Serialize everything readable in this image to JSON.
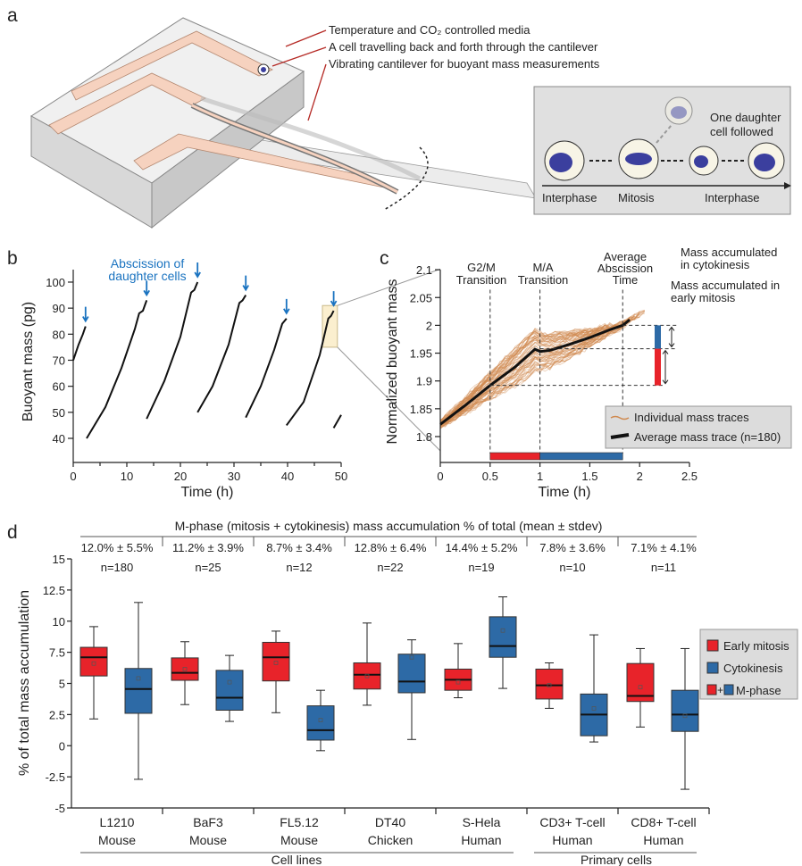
{
  "panels": {
    "a": "a",
    "b": "b",
    "c": "c",
    "d": "d"
  },
  "panel_a": {
    "callouts": [
      "Temperature and CO₂ controlled media",
      "A cell travelling back and forth through the cantilever",
      "Vibrating cantilever for buoyant mass measurements"
    ],
    "inset": {
      "followed": [
        "One daughter",
        "cell followed"
      ],
      "stages": [
        "Interphase",
        "Mitosis",
        "Interphase"
      ]
    },
    "colors": {
      "channel": "#f6d2bf",
      "chip": "#e4e4e4",
      "nucleus": "#3b3f9e",
      "arrow": "#b52a25",
      "inset_bg": "#e0e0e0"
    }
  },
  "chart_data": [
    {
      "id": "b",
      "type": "line",
      "xlabel": "Time (h)",
      "ylabel": "Buoyant mass (pg)",
      "xlim": [
        0,
        50
      ],
      "ylim": [
        35,
        105
      ],
      "xticks": [
        0,
        10,
        20,
        30,
        40,
        50
      ],
      "yticks": [
        40,
        50,
        60,
        70,
        80,
        90,
        100
      ],
      "annotation": [
        "Abscission of",
        "daughter cells"
      ],
      "annotation_color": "#1a73c0",
      "segments": [
        [
          [
            0,
            70
          ],
          [
            1,
            76
          ],
          [
            1.8,
            80
          ],
          [
            2.3,
            83
          ]
        ],
        [
          [
            2.5,
            40
          ],
          [
            6,
            52
          ],
          [
            9,
            67
          ],
          [
            11.5,
            82
          ],
          [
            12.3,
            88
          ],
          [
            13,
            89
          ],
          [
            13.7,
            93
          ]
        ],
        [
          [
            13.7,
            47.5
          ],
          [
            17,
            62
          ],
          [
            20,
            79
          ],
          [
            22,
            96
          ],
          [
            22.6,
            97
          ],
          [
            23.2,
            100
          ]
        ],
        [
          [
            23.2,
            50
          ],
          [
            26,
            60
          ],
          [
            29,
            76
          ],
          [
            31,
            92
          ],
          [
            31.6,
            93
          ],
          [
            32.2,
            95
          ]
        ],
        [
          [
            32.2,
            48
          ],
          [
            35,
            60
          ],
          [
            37.5,
            74
          ],
          [
            39,
            84
          ],
          [
            39.4,
            85
          ],
          [
            39.8,
            86
          ]
        ],
        [
          [
            39.8,
            45
          ],
          [
            43,
            54
          ],
          [
            46,
            72
          ],
          [
            47.6,
            86
          ],
          [
            48.1,
            87
          ],
          [
            48.6,
            89
          ]
        ],
        [
          [
            48.6,
            44
          ],
          [
            50,
            49
          ]
        ]
      ],
      "abscission_times": [
        2.3,
        13.7,
        23.2,
        32.2,
        39.8,
        48.6
      ],
      "highlight_color": "#fbefcf"
    },
    {
      "id": "c",
      "type": "line",
      "xlabel": "Time (h)",
      "ylabel": "Normalized buoyant mass",
      "xlim": [
        0,
        2.5
      ],
      "ylim": [
        1.76,
        2.1
      ],
      "xticks": [
        0,
        0.5,
        1,
        1.5,
        2,
        2.5
      ],
      "yticks": [
        1.8,
        1.85,
        1.9,
        1.95,
        2,
        2.05,
        2.1
      ],
      "vlines": [
        {
          "x": 0.5,
          "label": [
            "G2/M",
            "Transition"
          ]
        },
        {
          "x": 1,
          "label": [
            "M/A",
            "Transition"
          ]
        },
        {
          "x": 1.83,
          "label": [
            "Average",
            "Abscission",
            "Time"
          ]
        }
      ],
      "hlines": [
        1.892,
        1.958,
        2.0
      ],
      "bracket_labels": {
        "cytokinesis": [
          "Mass accumulated",
          "in cytokinesis"
        ],
        "early_mitosis": [
          "Mass accumulated in",
          "early mitosis"
        ]
      },
      "average": [
        [
          0,
          1.822
        ],
        [
          0.25,
          1.856
        ],
        [
          0.5,
          1.892
        ],
        [
          0.75,
          1.925
        ],
        [
          0.95,
          1.957
        ],
        [
          1.0,
          1.953
        ],
        [
          1.1,
          1.955
        ],
        [
          1.3,
          1.966
        ],
        [
          1.5,
          1.978
        ],
        [
          1.7,
          1.992
        ],
        [
          1.83,
          2.0
        ],
        [
          1.9,
          2.01
        ]
      ],
      "series": [
        {
          "name": "Individual mass traces",
          "color": "#d08a50"
        },
        {
          "name": "Average mass trace (n=180)",
          "color": "#111111"
        }
      ],
      "legend": "bottom-right",
      "phase_bar": [
        {
          "from": 0.5,
          "to": 1,
          "color": "#e8232a"
        },
        {
          "from": 1,
          "to": 1.83,
          "color": "#2d6aa6"
        }
      ]
    },
    {
      "id": "d",
      "type": "box",
      "title": "M-phase (mitosis + cytokinesis) mass accumulation % of total (mean ± stdev)",
      "ylabel": "% of total mass accumulation",
      "ylim": [
        -5,
        15
      ],
      "yticks": [
        15,
        12.5,
        10,
        7.5,
        5,
        2.5,
        0,
        -2.5,
        -5
      ],
      "groups": [
        {
          "name": [
            "L1210",
            "Mouse"
          ],
          "mphase": "12.0% ± 5.5%",
          "n": "n=180",
          "early": {
            "min": 2.15,
            "q1": 5.6,
            "median": 7.1,
            "q3": 7.9,
            "max": 9.56,
            "mean": 6.6
          },
          "cyto": {
            "min": -2.7,
            "q1": 2.6,
            "median": 4.55,
            "q3": 6.2,
            "max": 11.5,
            "mean": 5.4
          }
        },
        {
          "name": [
            "BaF3",
            "Mouse"
          ],
          "mphase": "11.2% ± 3.9%",
          "n": "n=25",
          "early": {
            "min": 3.3,
            "q1": 5.25,
            "median": 5.85,
            "q3": 7.05,
            "max": 8.35,
            "mean": 6.15
          },
          "cyto": {
            "min": 1.95,
            "q1": 2.85,
            "median": 3.85,
            "q3": 6.05,
            "max": 7.25,
            "mean": 5.1
          }
        },
        {
          "name": [
            "FL5.12",
            "Mouse"
          ],
          "mphase": "8.7% ± 3.4%",
          "n": "n=12",
          "early": {
            "min": 2.65,
            "q1": 5.2,
            "median": 7.1,
            "q3": 8.3,
            "max": 9.2,
            "mean": 6.65
          },
          "cyto": {
            "min": -0.4,
            "q1": 0.45,
            "median": 1.25,
            "q3": 3.2,
            "max": 4.45,
            "mean": 2.05
          }
        },
        {
          "name": [
            "DT40",
            "Chicken"
          ],
          "mphase": "12.8% ± 6.4%",
          "n": "n=22",
          "early": {
            "min": 3.25,
            "q1": 4.55,
            "median": 5.7,
            "q3": 6.65,
            "max": 9.85,
            "mean": 5.6
          },
          "cyto": {
            "min": 0.5,
            "q1": 4.25,
            "median": 5.15,
            "q3": 7.35,
            "max": 8.5,
            "mean": 7.1
          }
        },
        {
          "name": [
            "S-Hela",
            "Human"
          ],
          "mphase": "14.4% ± 5.2%",
          "n": "n=19",
          "early": {
            "min": 3.85,
            "q1": 4.45,
            "median": 5.3,
            "q3": 6.15,
            "max": 8.2,
            "mean": 5.1
          },
          "cyto": {
            "min": 4.6,
            "q1": 7.1,
            "median": 8.0,
            "q3": 10.35,
            "max": 11.95,
            "mean": 9.25
          }
        },
        {
          "name": [
            "CD3+ T-cell",
            "Human"
          ],
          "mphase": "7.8% ± 3.6%",
          "n": "n=10",
          "early": {
            "min": 3.0,
            "q1": 3.75,
            "median": 4.85,
            "q3": 6.15,
            "max": 6.65,
            "mean": 4.85
          },
          "cyto": {
            "min": 0.3,
            "q1": 0.8,
            "median": 2.5,
            "q3": 4.15,
            "max": 8.9,
            "mean": 3.0
          }
        },
        {
          "name": [
            "CD8+ T-cell",
            "Human"
          ],
          "mphase": "7.1% ± 4.1%",
          "n": "n=11",
          "early": {
            "min": 1.5,
            "q1": 3.55,
            "median": 4.0,
            "q3": 6.6,
            "max": 7.8,
            "mean": 4.7
          },
          "cyto": {
            "min": -3.5,
            "q1": 1.15,
            "median": 2.5,
            "q3": 4.45,
            "max": 7.8,
            "mean": 2.4
          }
        }
      ],
      "categories": [
        {
          "label": "Cell lines",
          "groups": [
            0,
            4
          ]
        },
        {
          "label": "Primary cells",
          "groups": [
            5,
            6
          ]
        }
      ],
      "legend": {
        "placement": "right",
        "items": [
          "Early mitosis",
          "Cytokinesis",
          "M-phase"
        ],
        "plus": "+"
      },
      "colors": {
        "early": "#e8232a",
        "cyto": "#2d6aa6",
        "legend_bg": "#dcdcdc"
      }
    }
  ]
}
